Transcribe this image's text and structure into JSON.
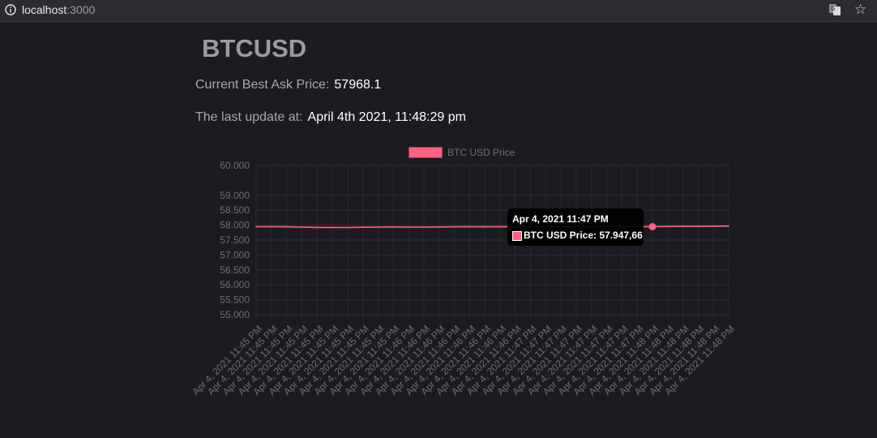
{
  "browser": {
    "url_host": "localhost",
    "url_port": ":3000",
    "info_icon": "info-icon",
    "translate_icon": "translate-icon",
    "bookmark_icon": "star-icon"
  },
  "page": {
    "title": "BTCUSD",
    "price_label": "Current Best Ask Price:",
    "price_value": "57968.1",
    "update_label": "The last update at:",
    "update_value": "April 4th 2021, 11:48:29 pm"
  },
  "tooltip": {
    "title": "Apr 4, 2021 11:47 PM",
    "body": "BTC USD Price: 57.947,66"
  },
  "colors": {
    "series": "#ff6384",
    "background": "#1b1c21"
  },
  "chart_data": {
    "type": "line",
    "title": "",
    "xlabel": "",
    "ylabel": "",
    "legend": "top",
    "grid": true,
    "series": [
      {
        "name": "BTC USD Price",
        "values": [
          57950,
          57950,
          57945,
          57935,
          57925,
          57925,
          57920,
          57930,
          57935,
          57940,
          57935,
          57935,
          57940,
          57945,
          57945,
          57945,
          57945,
          57945,
          57945,
          57945,
          57945,
          57945,
          57945,
          57945,
          57945,
          57945,
          57950,
          57955,
          57960,
          57960,
          57965,
          57970
        ]
      }
    ],
    "x": [
      "Apr 4, 2021 11:45 PM",
      "Apr 4, 2021 11:45 PM",
      "Apr 4, 2021 11:45 PM",
      "Apr 4, 2021 11:45 PM",
      "Apr 4, 2021 11:45 PM",
      "Apr 4, 2021 11:45 PM",
      "Apr 4, 2021 11:45 PM",
      "Apr 4, 2021 11:45 PM",
      "Apr 4, 2021 11:45 PM",
      "Apr 4, 2021 11:45 PM",
      "Apr 4, 2021 11:46 PM",
      "Apr 4, 2021 11:46 PM",
      "Apr 4, 2021 11:46 PM",
      "Apr 4, 2021 11:46 PM",
      "Apr 4, 2021 11:46 PM",
      "Apr 4, 2021 11:46 PM",
      "Apr 4, 2021 11:46 PM",
      "Apr 4, 2021 11:46 PM",
      "Apr 4, 2021 11:47 PM",
      "Apr 4, 2021 11:47 PM",
      "Apr 4, 2021 11:47 PM",
      "Apr 4, 2021 11:47 PM",
      "Apr 4, 2021 11:47 PM",
      "Apr 4, 2021 11:47 PM",
      "Apr 4, 2021 11:47 PM",
      "Apr 4, 2021 11:47 PM",
      "Apr 4, 2021 11:48 PM",
      "Apr 4, 2021 11:48 PM",
      "Apr 4, 2021 11:48 PM",
      "Apr 4, 2021 11:48 PM",
      "Apr 4, 2021 11:48 PM",
      "Apr 4, 2021 11:48 PM"
    ],
    "y_ticks": [
      "60.000",
      "59.000",
      "58.500",
      "58.000",
      "57.500",
      "57.000",
      "56.500",
      "56.000",
      "55.500",
      "55.000"
    ],
    "ylim": [
      55000,
      60000
    ],
    "highlight_index": 26
  }
}
